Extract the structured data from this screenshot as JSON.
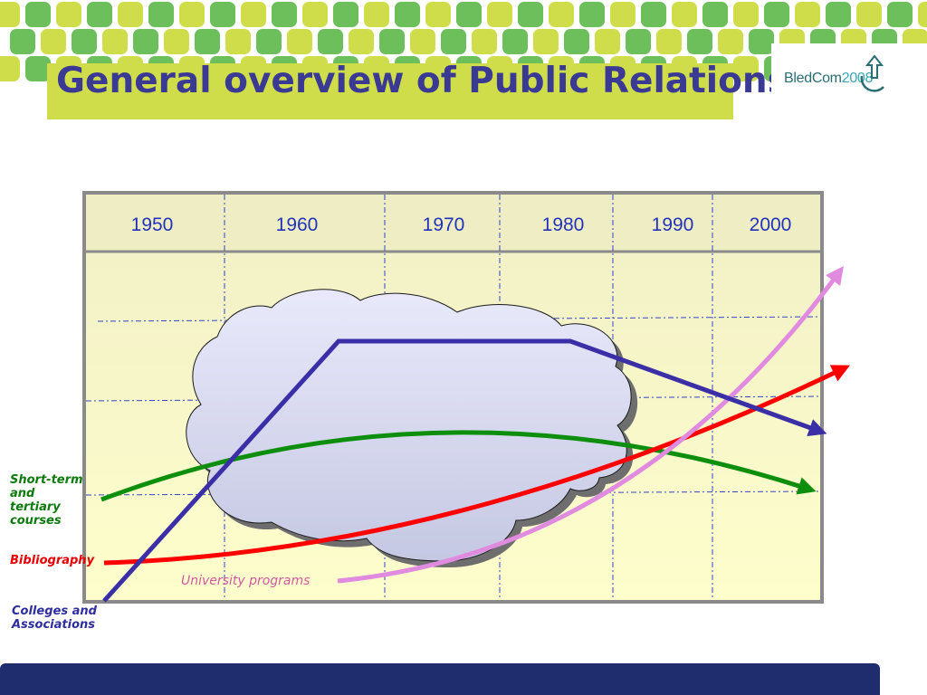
{
  "slide": {
    "title": "General overview of Public Relations"
  },
  "logo": {
    "name": "BledCom",
    "year": "2008"
  },
  "timeline": {
    "years": [
      "1950",
      "1960",
      "1970",
      "1980",
      "1990",
      "2000"
    ]
  },
  "series_labels": {
    "short_term": "Short-term and tertiary courses",
    "bibliography": "Bibliography",
    "university": "University programs",
    "colleges": "Colleges and Associations"
  },
  "colors": {
    "title": "#3a3a94",
    "short_term": "#0d8f0d",
    "bibliography": "#ff0000",
    "university": "#e08ae0",
    "colleges": "#3a2fa6",
    "band": "#cfdd4a",
    "footer": "#1f2d6e"
  }
}
